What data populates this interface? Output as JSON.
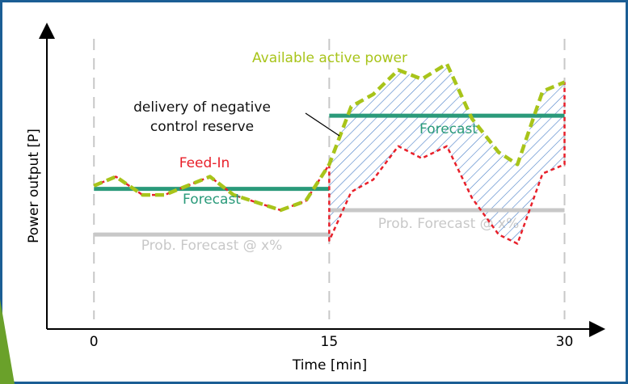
{
  "chart_data": {
    "type": "line",
    "x_label": "Time [min]",
    "y_label": "Power output [P]",
    "xlim": [
      -3,
      32.5
    ],
    "ylim": [
      0,
      100
    ],
    "xticks": [
      0,
      15,
      30
    ],
    "grid": true,
    "series": [
      {
        "name": "Prob. Forecast @ x%",
        "color": "#c8c8c8",
        "x": [
          0,
          15,
          15,
          15,
          30
        ],
        "values": [
          31,
          31,
          null,
          39,
          39
        ]
      },
      {
        "name": "Forecast",
        "color": "#2a9a7a",
        "x": [
          0,
          15,
          15,
          15,
          30
        ],
        "values": [
          46,
          46,
          null,
          70,
          70
        ]
      },
      {
        "name": "Feed-In",
        "color": "#e8202a",
        "x": [
          0,
          1.4,
          3.1,
          4.5,
          7.4,
          8.9,
          11.9,
          13.5,
          15,
          15,
          16.4,
          17.8,
          19.4,
          20.9,
          22.5,
          24.1,
          25.8,
          27,
          28.6,
          30,
          30
        ],
        "values": [
          47,
          50,
          44,
          44,
          50,
          44,
          39,
          42,
          54,
          29,
          45,
          49,
          60,
          56,
          60,
          43,
          31,
          28,
          51,
          54,
          81
        ]
      },
      {
        "name": "Available active power",
        "color": "#a8c41a",
        "x": [
          0,
          1.4,
          3.1,
          4.5,
          7.4,
          8.9,
          11.9,
          13.5,
          15,
          16.4,
          17.8,
          19.4,
          20.9,
          22.5,
          24.1,
          25.8,
          27,
          28.6,
          30
        ],
        "values": [
          47,
          50,
          44,
          44,
          50,
          44,
          39,
          42,
          54,
          73,
          77,
          85,
          82,
          87,
          69,
          58,
          54,
          78,
          81
        ]
      }
    ],
    "annotations": [
      {
        "text": "Available active power",
        "color": "#a8c41a"
      },
      {
        "text": "delivery of negative",
        "color": "#111111"
      },
      {
        "text": "control reserve",
        "color": "#111111"
      },
      {
        "text": "Feed-In",
        "color": "#e8202a"
      },
      {
        "text": "Forecast",
        "color": "#2a9a7a"
      },
      {
        "text": "Forecast",
        "color": "#2a9a7a"
      },
      {
        "text": "Prob. Forecast @ x%",
        "color": "#c8c8c8"
      },
      {
        "text": "Prob. Forecast @ x%",
        "color": "#c8c8c8"
      }
    ]
  }
}
